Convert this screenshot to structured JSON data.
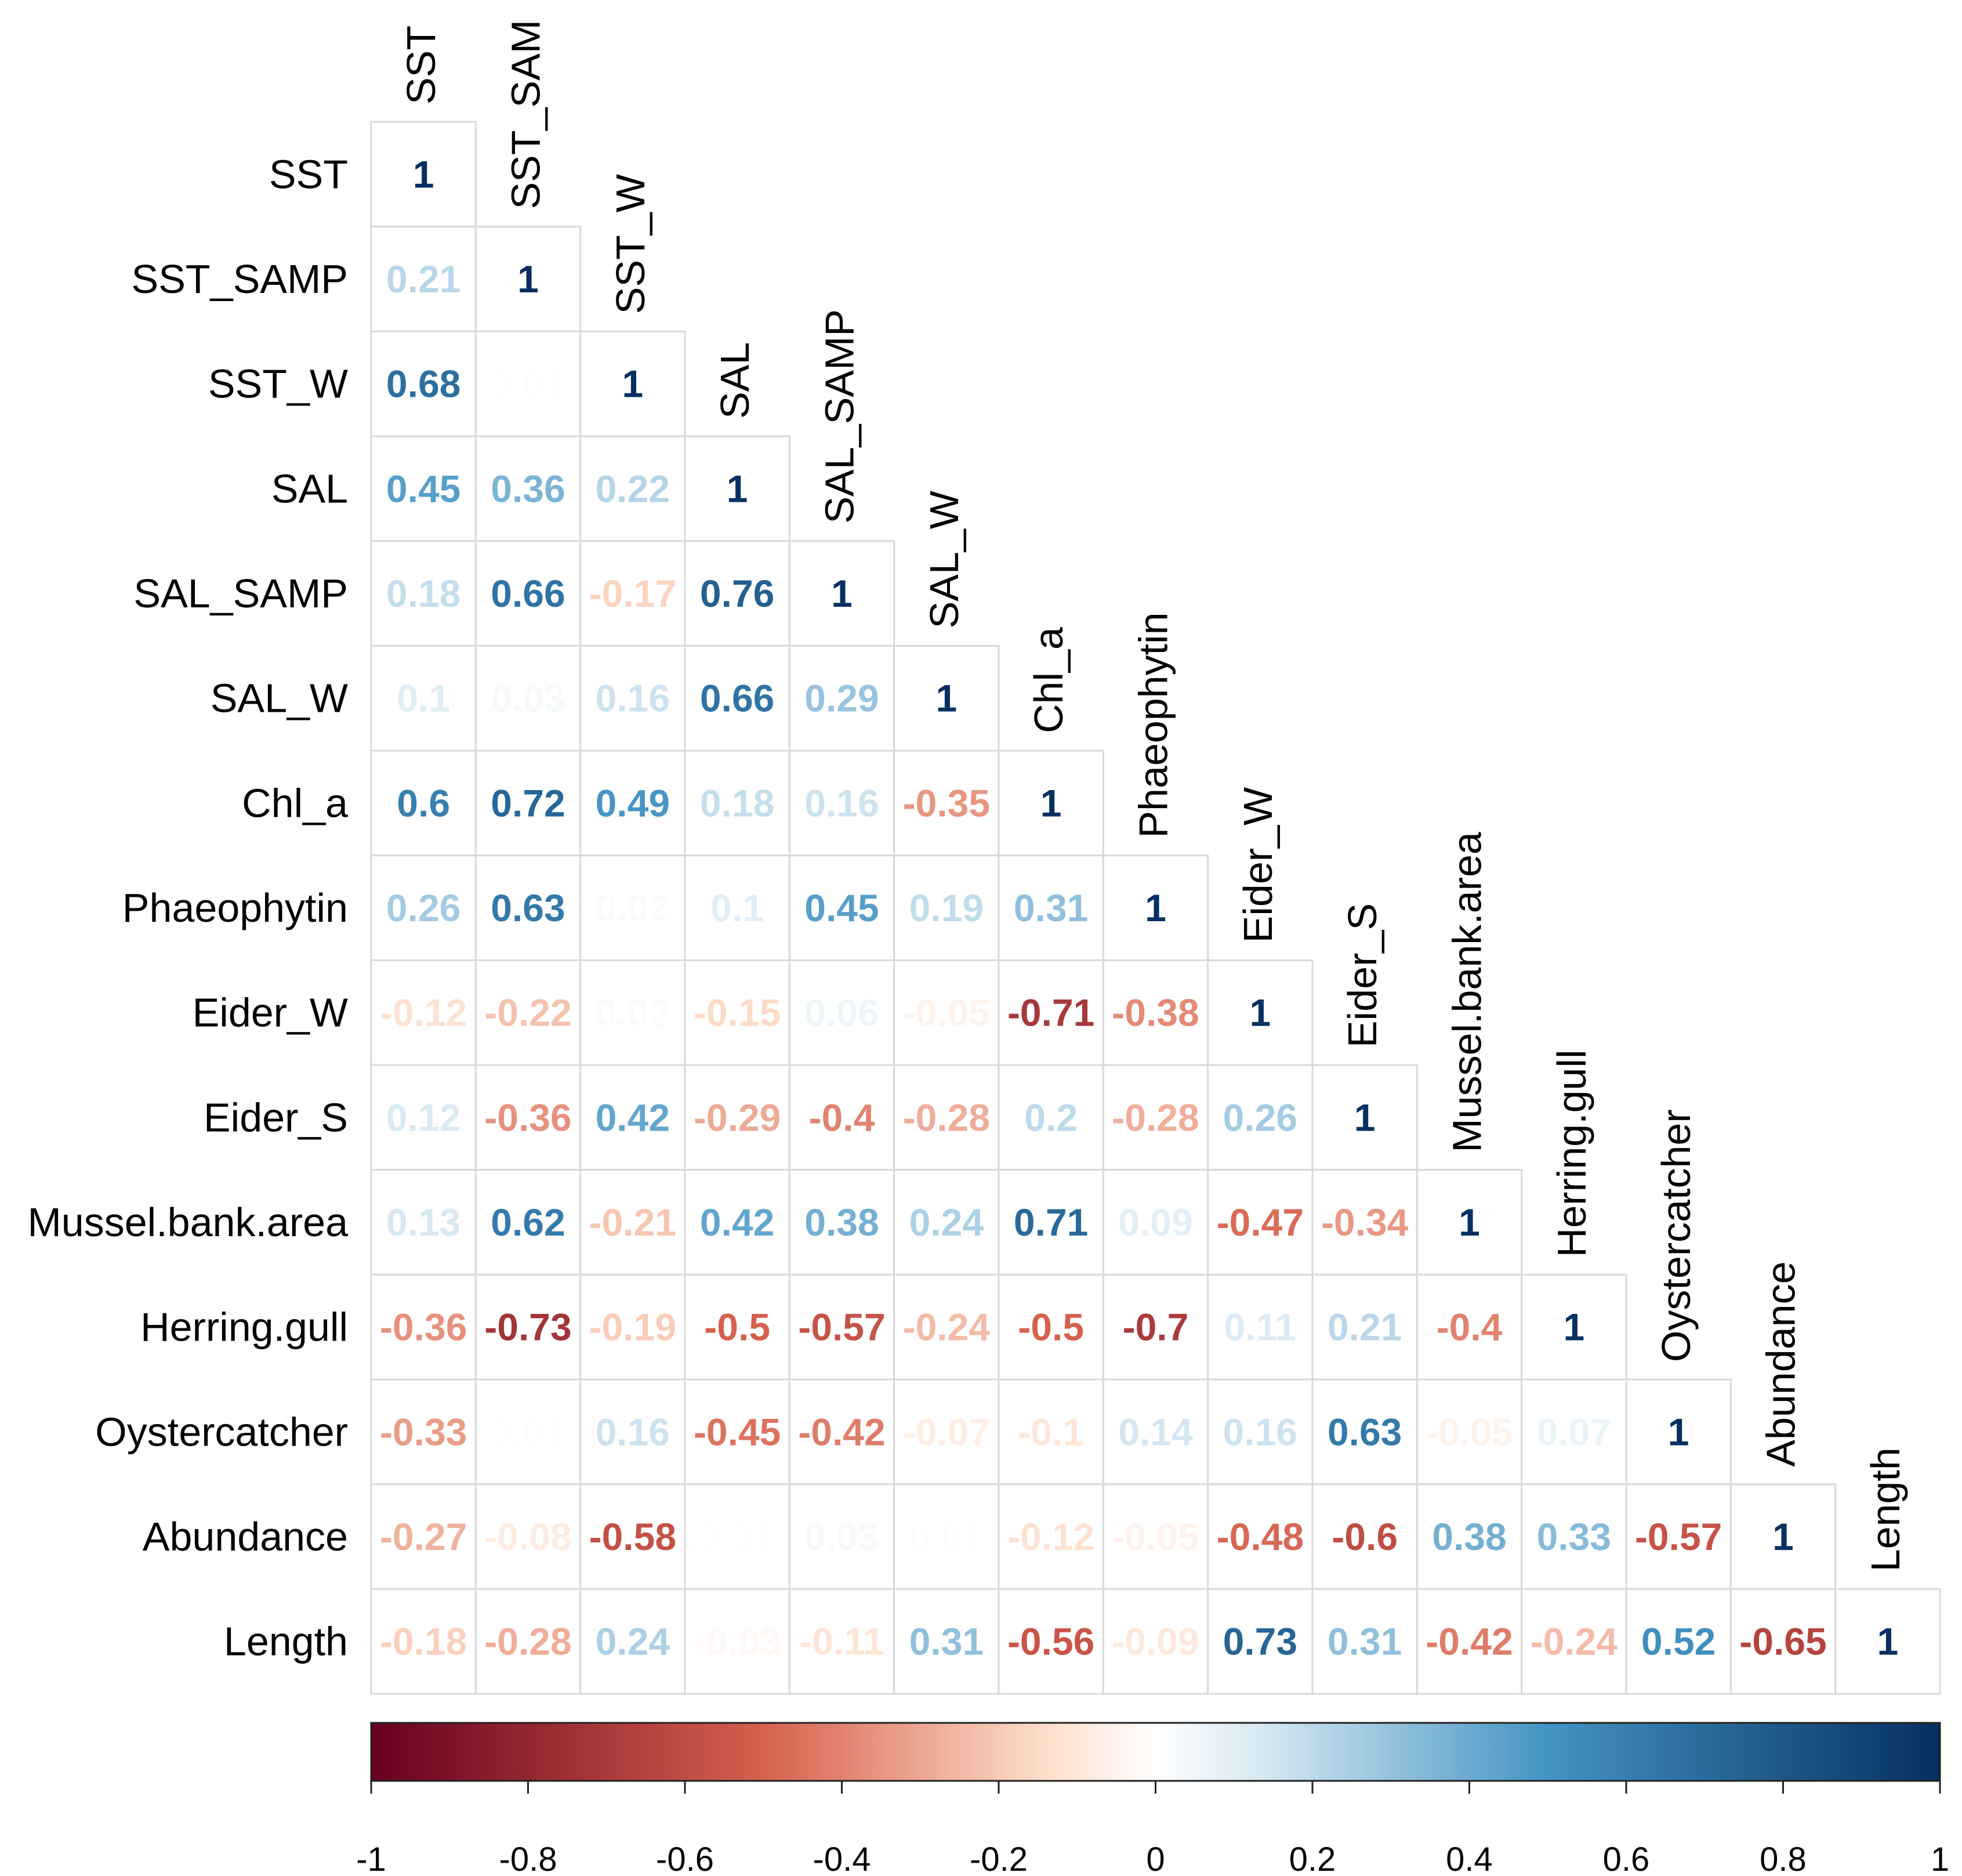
{
  "chart_data": {
    "type": "heatmap",
    "subtype": "correlation-matrix-lower-triangle",
    "variables": [
      "SST",
      "SST_SAMP",
      "SST_W",
      "SAL",
      "SAL_SAMP",
      "SAL_W",
      "Chl_a",
      "Phaeophytin",
      "Eider_W",
      "Eider_S",
      "Mussel.bank.area",
      "Herring.gull",
      "Oystercatcher",
      "Abundance",
      "Length"
    ],
    "column_labels_shown": [
      "SST",
      "SST_SAM",
      "SST_W",
      "SAL",
      "SAL_SAMP",
      "SAL_W",
      "Chl_a",
      "Phaeophytin",
      "Eider_W",
      "Eider_S",
      "Mussel.bank.area",
      "Herring.gull",
      "Oystercatcher",
      "Abundance",
      "Length"
    ],
    "matrix": [
      [
        "1"
      ],
      [
        "0.21",
        "1"
      ],
      [
        "0.68",
        "0.01",
        "1"
      ],
      [
        "0.45",
        "0.36",
        "0.22",
        "1"
      ],
      [
        "0.18",
        "0.66",
        "-0.17",
        "0.76",
        "1"
      ],
      [
        "0.1",
        "0.03",
        "0.16",
        "0.66",
        "0.29",
        "1"
      ],
      [
        "0.6",
        "0.72",
        "0.49",
        "0.18",
        "0.16",
        "-0.35",
        "1"
      ],
      [
        "0.26",
        "0.63",
        "0.02",
        "0.1",
        "0.45",
        "0.19",
        "0.31",
        "1"
      ],
      [
        "-0.12",
        "-0.22",
        "0.02",
        "-0.15",
        "0.06",
        "-0.05",
        "-0.71",
        "-0.38",
        "1"
      ],
      [
        "0.12",
        "-0.36",
        "0.42",
        "-0.29",
        "-0.4",
        "-0.28",
        "0.2",
        "-0.28",
        "0.26",
        "1"
      ],
      [
        "0.13",
        "0.62",
        "-0.21",
        "0.42",
        "0.38",
        "0.24",
        "0.71",
        "0.09",
        "-0.47",
        "-0.34",
        "1"
      ],
      [
        "-0.36",
        "-0.73",
        "-0.19",
        "-0.5",
        "-0.57",
        "-0.24",
        "-0.5",
        "-0.7",
        "0.11",
        "0.21",
        "-0.4",
        "1"
      ],
      [
        "-0.33",
        "0.01",
        "0.16",
        "-0.45",
        "-0.42",
        "-0.07",
        "-0.1",
        "0.14",
        "0.16",
        "0.63",
        "-0.05",
        "0.07",
        "1"
      ],
      [
        "-0.27",
        "-0.08",
        "-0.58",
        "0.01",
        "0.03",
        "0.01",
        "-0.12",
        "-0.05",
        "-0.48",
        "-0.6",
        "0.38",
        "0.33",
        "-0.57",
        "1"
      ],
      [
        "-0.18",
        "-0.28",
        "0.24",
        "-0.03",
        "-0.11",
        "0.31",
        "-0.56",
        "-0.09",
        "0.73",
        "0.31",
        "-0.42",
        "-0.24",
        "0.52",
        "-0.65",
        "1"
      ]
    ],
    "colorbar": {
      "range": [
        -1,
        1
      ],
      "ticks": [
        "-1",
        "-0.8",
        "-0.6",
        "-0.4",
        "-0.2",
        "0",
        "0.2",
        "0.4",
        "0.6",
        "0.8",
        "1"
      ],
      "colors": {
        "neg_strong": "#67001f",
        "neg_mid": "#d6604d",
        "neg_light": "#fddbc7",
        "zero": "#ffffff",
        "pos_light": "#d1e5f0",
        "pos_mid": "#4393c3",
        "pos_strong": "#053061"
      }
    }
  }
}
